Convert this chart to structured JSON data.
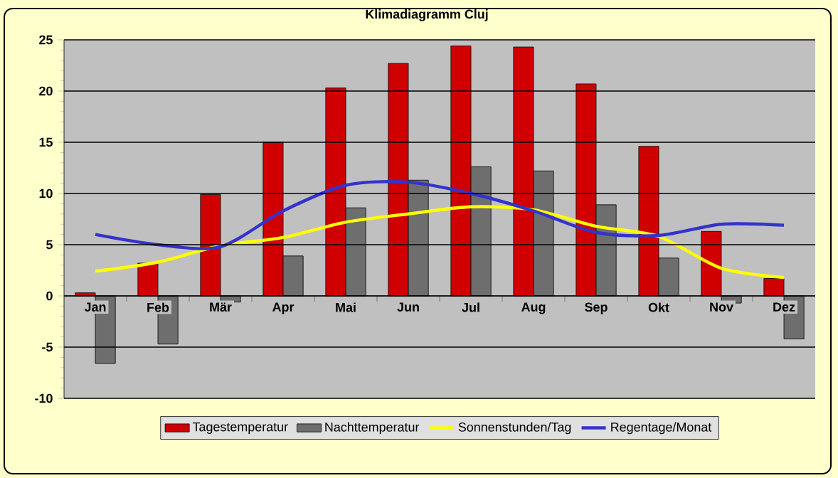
{
  "chart_data": {
    "type": "bar",
    "title": "Klimadiagramm Cluj",
    "categories": [
      "Jan",
      "Feb",
      "Mär",
      "Apr",
      "Mai",
      "Jun",
      "Jul",
      "Aug",
      "Sep",
      "Okt",
      "Nov",
      "Dez"
    ],
    "series": [
      {
        "name": "Tagestemperatur",
        "color": "#d00000",
        "values": [
          0.3,
          3.2,
          9.9,
          15.0,
          20.3,
          22.7,
          24.4,
          24.3,
          20.7,
          14.6,
          6.3,
          1.7
        ]
      },
      {
        "name": "Nachttemperatur",
        "color": "#6e6e6e",
        "values": [
          -6.6,
          -4.7,
          -0.6,
          3.9,
          8.6,
          11.3,
          12.6,
          12.2,
          8.9,
          3.7,
          -0.7,
          -4.2
        ]
      },
      {
        "name": "Sonnenstunden/Tag",
        "type": "line",
        "color": "#ffff00",
        "values": [
          2.4,
          3.3,
          4.9,
          5.7,
          7.2,
          8.0,
          8.7,
          8.4,
          6.8,
          5.8,
          2.7,
          1.8
        ]
      },
      {
        "name": "Regentage/Monat",
        "type": "line",
        "color": "#3333cc",
        "values": [
          6.0,
          5.0,
          4.8,
          8.3,
          10.8,
          11.1,
          10.0,
          8.3,
          6.2,
          5.9,
          7.0,
          6.9
        ]
      }
    ],
    "ylim": [
      -10,
      25
    ],
    "yticks": [
      -10,
      -5,
      0,
      5,
      10,
      15,
      20,
      25
    ],
    "grid": "y",
    "legend": "bottom",
    "marker": "none",
    "line_style": "solid"
  }
}
